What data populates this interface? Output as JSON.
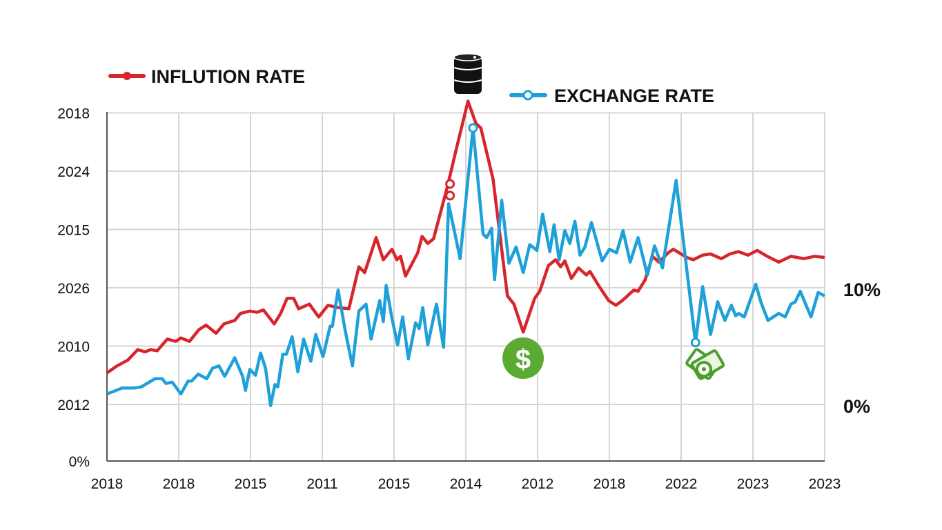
{
  "chart_data": {
    "type": "line",
    "title": "",
    "xlabel": "",
    "ylabel": "",
    "grid": true,
    "legend_placement": "top",
    "x_tick_labels": [
      "2018",
      "2018",
      "2015",
      "2011",
      "2015",
      "2014",
      "2012",
      "2018",
      "2022",
      "2023",
      "2023"
    ],
    "left_y_ticks": [
      {
        "label": "2018",
        "value": 25
      },
      {
        "label": "2024",
        "value": 20
      },
      {
        "label": "2015",
        "value": 15
      },
      {
        "label": "2026",
        "value": 10
      },
      {
        "label": "2010",
        "value": 5
      },
      {
        "label": "2012",
        "value": 0
      },
      {
        "label": "0%",
        "value": -4.85
      }
    ],
    "right_y_ticks": [
      {
        "label": "10%",
        "value": 10
      },
      {
        "label": "0%",
        "value": 0
      }
    ],
    "x_range": [
      0,
      10
    ],
    "ylim": [
      -4.85,
      25
    ],
    "series": [
      {
        "name": "INFLUTION RATE",
        "color": "#d7262b",
        "x": [
          0,
          0.14,
          0.29,
          0.43,
          0.53,
          0.61,
          0.7,
          0.84,
          0.96,
          1.03,
          1.15,
          1.28,
          1.38,
          1.52,
          1.63,
          1.78,
          1.86,
          1.99,
          2.09,
          2.18,
          2.33,
          2.42,
          2.51,
          2.6,
          2.67,
          2.82,
          2.95,
          3.08,
          3.22,
          3.37,
          3.51,
          3.59,
          3.75,
          3.85,
          3.97,
          4.04,
          4.09,
          4.16,
          4.33,
          4.39,
          4.47,
          4.55,
          4.74,
          4.86,
          5.03,
          5.14,
          5.21,
          5.38,
          5.58,
          5.67,
          5.8,
          5.96,
          6.03,
          6.15,
          6.25,
          6.32,
          6.38,
          6.47,
          6.57,
          6.68,
          6.73,
          6.86,
          6.99,
          7.09,
          7.18,
          7.34,
          7.4,
          7.5,
          7.6,
          7.69,
          7.82,
          7.89,
          8.08,
          8.17,
          8.3,
          8.41,
          8.56,
          8.68,
          8.8,
          8.93,
          9.06,
          9.2,
          9.36,
          9.53,
          9.71,
          9.86,
          10
        ],
        "values": [
          2.7,
          3.3,
          3.8,
          4.7,
          4.5,
          4.7,
          4.6,
          5.6,
          5.4,
          5.7,
          5.4,
          6.4,
          6.8,
          6.1,
          6.9,
          7.2,
          7.8,
          8.0,
          7.9,
          8.1,
          6.9,
          7.8,
          9.1,
          9.1,
          8.2,
          8.6,
          7.5,
          8.5,
          8.3,
          8.2,
          11.8,
          11.3,
          14.3,
          12.4,
          13.3,
          12.4,
          12.7,
          11.0,
          13.0,
          14.4,
          13.8,
          14.2,
          18.6,
          21.7,
          26.0,
          24.1,
          23.7,
          19.3,
          9.3,
          8.6,
          6.2,
          9.1,
          9.7,
          11.9,
          12.4,
          11.8,
          12.3,
          10.8,
          11.7,
          11.1,
          11.4,
          10.1,
          8.9,
          8.5,
          8.9,
          9.8,
          9.7,
          10.7,
          12.7,
          12.2,
          13.0,
          13.3,
          12.6,
          12.4,
          12.8,
          12.9,
          12.5,
          12.9,
          13.1,
          12.8,
          13.2,
          12.7,
          12.2,
          12.7,
          12.5,
          12.7,
          12.6
        ],
        "markers": [
          {
            "x": 4.78,
            "y": 18.9
          },
          {
            "x": 4.78,
            "y": 17.9
          }
        ]
      },
      {
        "name": "EXCHANGE RATE",
        "color": "#1ea0d8",
        "x": [
          0,
          0.13,
          0.21,
          0.38,
          0.48,
          0.56,
          0.67,
          0.77,
          0.82,
          0.91,
          0.97,
          1.03,
          1.13,
          1.18,
          1.27,
          1.39,
          1.47,
          1.56,
          1.64,
          1.78,
          1.89,
          1.93,
          1.99,
          2.07,
          2.14,
          2.21,
          2.28,
          2.34,
          2.38,
          2.45,
          2.5,
          2.58,
          2.66,
          2.74,
          2.84,
          2.91,
          3.01,
          3.11,
          3.14,
          3.22,
          3.32,
          3.42,
          3.51,
          3.61,
          3.68,
          3.8,
          3.85,
          3.89,
          3.97,
          4.05,
          4.12,
          4.2,
          4.3,
          4.35,
          4.4,
          4.47,
          4.59,
          4.69,
          4.76,
          4.86,
          4.92,
          5.1,
          5.24,
          5.29,
          5.36,
          5.4,
          5.5,
          5.6,
          5.7,
          5.8,
          5.89,
          5.99,
          6.07,
          6.17,
          6.23,
          6.3,
          6.38,
          6.45,
          6.52,
          6.59,
          6.66,
          6.75,
          6.9,
          7.0,
          7.1,
          7.19,
          7.29,
          7.4,
          7.53,
          7.63,
          7.74,
          7.93,
          8.2,
          8.3,
          8.41,
          8.51,
          8.61,
          8.7,
          8.76,
          8.8,
          8.88,
          9.04,
          9.11,
          9.21,
          9.36,
          9.45,
          9.53,
          9.59,
          9.66,
          9.81,
          9.91,
          10
        ],
        "values": [
          0.9,
          1.2,
          1.4,
          1.4,
          1.5,
          1.8,
          2.2,
          2.2,
          1.8,
          1.9,
          1.4,
          0.9,
          2.0,
          2.0,
          2.6,
          2.2,
          3.1,
          3.3,
          2.4,
          4.0,
          2.4,
          1.2,
          3.0,
          2.5,
          4.4,
          3.1,
          -0.1,
          1.7,
          1.5,
          4.3,
          4.3,
          5.8,
          2.8,
          5.6,
          3.7,
          6.0,
          4.1,
          6.7,
          6.7,
          9.8,
          6.3,
          3.3,
          8.0,
          8.6,
          5.6,
          8.9,
          7.1,
          10.2,
          7.4,
          5.1,
          7.5,
          3.9,
          7.0,
          6.5,
          8.3,
          5.1,
          8.6,
          4.9,
          17.2,
          14.3,
          12.5,
          23.7,
          14.6,
          14.3,
          15.1,
          10.7,
          17.5,
          12.1,
          13.5,
          11.3,
          13.7,
          13.2,
          16.3,
          13.1,
          15.4,
          12.4,
          14.9,
          13.8,
          15.7,
          12.8,
          13.5,
          15.6,
          12.3,
          13.3,
          13.0,
          14.9,
          12.2,
          14.3,
          11.1,
          13.6,
          11.7,
          19.2,
          5.3,
          10.1,
          6.0,
          8.8,
          7.2,
          8.5,
          7.6,
          7.8,
          7.5,
          10.3,
          8.8,
          7.2,
          7.8,
          7.5,
          8.6,
          8.8,
          9.7,
          7.5,
          9.6,
          9.3
        ],
        "markers": [
          {
            "x": 5.1,
            "y": 23.7
          },
          {
            "x": 8.2,
            "y": 5.3
          }
        ]
      }
    ],
    "annotations": [
      {
        "icon": "oil-barrel-icon",
        "color": "#111111"
      },
      {
        "icon": "dollar-coin-icon",
        "color": "#5bab32",
        "glyph": "$"
      },
      {
        "icon": "money-bills-icon",
        "color": "#5bab32"
      }
    ]
  }
}
